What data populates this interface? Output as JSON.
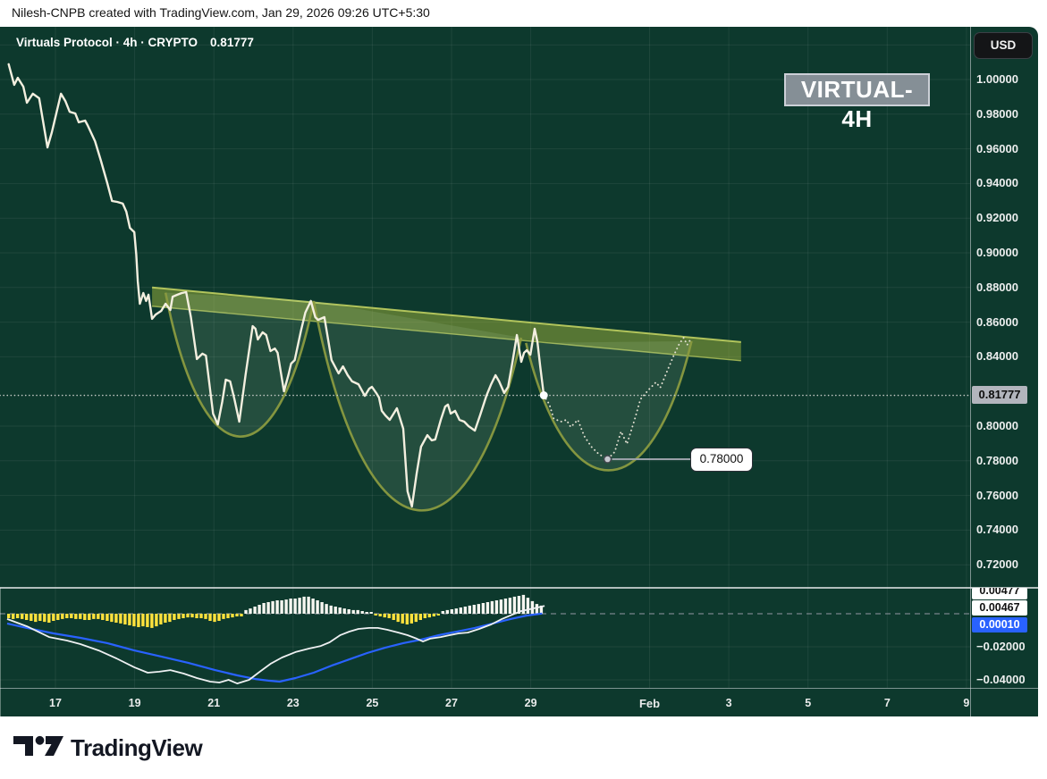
{
  "attribution": {
    "text": "Nilesh-CNPB created with TradingView.com, Jan 29, 2026 09:26 UTC+5:30"
  },
  "header": {
    "symbol_title": "Virtuals Protocol · 4h · CRYPTO",
    "last_price": "0.81777",
    "currency_button": "USD",
    "watermark": "VIRTUAL-4H"
  },
  "footer": {
    "brand": "TradingView"
  },
  "callout": {
    "text": "0.78000"
  },
  "price_axis": {
    "current": {
      "label": "0.81777",
      "value": 0.81777
    },
    "extra_grid": [
      1.02
    ],
    "ticks": [
      {
        "label": "1.00000",
        "value": 1.0
      },
      {
        "label": "0.98000",
        "value": 0.98
      },
      {
        "label": "0.96000",
        "value": 0.96
      },
      {
        "label": "0.94000",
        "value": 0.94
      },
      {
        "label": "0.92000",
        "value": 0.92
      },
      {
        "label": "0.90000",
        "value": 0.9
      },
      {
        "label": "0.88000",
        "value": 0.88
      },
      {
        "label": "0.86000",
        "value": 0.86
      },
      {
        "label": "0.84000",
        "value": 0.84
      },
      {
        "label": "0.80000",
        "value": 0.8
      },
      {
        "label": "0.78000",
        "value": 0.78
      },
      {
        "label": "0.76000",
        "value": 0.76
      },
      {
        "label": "0.74000",
        "value": 0.74
      },
      {
        "label": "0.72000",
        "value": 0.72
      }
    ]
  },
  "time_axis": {
    "ticks": [
      {
        "label": "17",
        "day": 17
      },
      {
        "label": "19",
        "day": 19
      },
      {
        "label": "21",
        "day": 21
      },
      {
        "label": "23",
        "day": 23
      },
      {
        "label": "25",
        "day": 25
      },
      {
        "label": "27",
        "day": 27
      },
      {
        "label": "29",
        "day": 29
      },
      {
        "label": "Feb",
        "day": 32,
        "bold": true
      },
      {
        "label": "3",
        "day": 34
      },
      {
        "label": "5",
        "day": 36
      },
      {
        "label": "7",
        "day": 38
      },
      {
        "label": "9",
        "day": 40
      }
    ]
  },
  "indicator_axis": {
    "badges": [
      {
        "label": "0.00477"
      },
      {
        "label": "0.00467"
      },
      {
        "label": "0.00010"
      }
    ],
    "ticks": [
      {
        "label": "−0.02000",
        "value": -0.02
      },
      {
        "label": "−0.04000",
        "value": -0.04
      }
    ]
  },
  "colors": {
    "panel_bg": "#0d392d",
    "grid": "rgba(255,255,255,0.07)",
    "price_line": "#f3efdf",
    "cup_stroke": "#8a9a40",
    "cup_fill": "rgba(195,225,175,0.13)",
    "band_fill": "rgba(160,180,60,0.50)",
    "band_edge": "rgba(200,215,100,0.85)",
    "dotted_level": "#c7cbc7",
    "projection": "#e3e0d2",
    "hist_pos": "#f6f6f0",
    "hist_neg": "#ffe23d",
    "macd_line": "#eef0f2",
    "signal_line": "#2962ff",
    "signal_label_bg": "#2962ff",
    "current_label_bg": "#b2b5bd",
    "separator": "#e8eaec",
    "target_dot": "#c6c9cf"
  },
  "chart_data": {
    "type": "line",
    "title": "Virtuals Protocol · 4h · CRYPTO",
    "watermark": "VIRTUAL-4H",
    "currency": "USD",
    "last_price": 0.81777,
    "x_unit": "day of Jan 2026 (Feb 1 = 32)",
    "x_range": [
      15.6,
      41.8
    ],
    "price_ylim": [
      0.705,
      1.025
    ],
    "grid": true,
    "price_series": [
      [
        15.82,
        1.0088
      ],
      [
        15.96,
        0.9969
      ],
      [
        16.05,
        1.001
      ],
      [
        16.19,
        0.9959
      ],
      [
        16.28,
        0.9866
      ],
      [
        16.43,
        0.9918
      ],
      [
        16.59,
        0.9892
      ],
      [
        16.8,
        0.9608
      ],
      [
        16.91,
        0.9696
      ],
      [
        17.14,
        0.9918
      ],
      [
        17.25,
        0.9876
      ],
      [
        17.36,
        0.9814
      ],
      [
        17.5,
        0.9804
      ],
      [
        17.59,
        0.9753
      ],
      [
        17.75,
        0.9763
      ],
      [
        17.81,
        0.9737
      ],
      [
        18.0,
        0.9644
      ],
      [
        18.15,
        0.9531
      ],
      [
        18.31,
        0.9402
      ],
      [
        18.43,
        0.9299
      ],
      [
        18.56,
        0.9294
      ],
      [
        18.7,
        0.9284
      ],
      [
        18.79,
        0.9237
      ],
      [
        18.88,
        0.9144
      ],
      [
        18.99,
        0.9119
      ],
      [
        19.04,
        0.899
      ],
      [
        19.08,
        0.8835
      ],
      [
        19.13,
        0.8706
      ],
      [
        19.22,
        0.8768
      ],
      [
        19.29,
        0.8722
      ],
      [
        19.35,
        0.8758
      ],
      [
        19.44,
        0.8619
      ],
      [
        19.53,
        0.8644
      ],
      [
        19.67,
        0.8665
      ],
      [
        19.78,
        0.8706
      ],
      [
        19.9,
        0.867
      ],
      [
        19.96,
        0.8747
      ],
      [
        20.08,
        0.8758
      ],
      [
        20.19,
        0.8768
      ],
      [
        20.3,
        0.8773
      ],
      [
        20.42,
        0.8629
      ],
      [
        20.57,
        0.8387
      ],
      [
        20.71,
        0.8418
      ],
      [
        20.8,
        0.8407
      ],
      [
        20.98,
        0.8072
      ],
      [
        21.1,
        0.801
      ],
      [
        21.21,
        0.8139
      ],
      [
        21.3,
        0.8268
      ],
      [
        21.41,
        0.8258
      ],
      [
        21.52,
        0.8155
      ],
      [
        21.64,
        0.8026
      ],
      [
        21.8,
        0.8294
      ],
      [
        21.98,
        0.8577
      ],
      [
        22.05,
        0.8562
      ],
      [
        22.11,
        0.85
      ],
      [
        22.23,
        0.8541
      ],
      [
        22.32,
        0.8526
      ],
      [
        22.43,
        0.8433
      ],
      [
        22.54,
        0.8448
      ],
      [
        22.61,
        0.8423
      ],
      [
        22.77,
        0.8201
      ],
      [
        22.88,
        0.8294
      ],
      [
        22.95,
        0.8361
      ],
      [
        23.04,
        0.8381
      ],
      [
        23.2,
        0.8552
      ],
      [
        23.31,
        0.8655
      ],
      [
        23.45,
        0.8722
      ],
      [
        23.56,
        0.8629
      ],
      [
        23.63,
        0.8613
      ],
      [
        23.79,
        0.8629
      ],
      [
        23.97,
        0.8381
      ],
      [
        24.15,
        0.8304
      ],
      [
        24.26,
        0.8345
      ],
      [
        24.38,
        0.8294
      ],
      [
        24.49,
        0.8258
      ],
      [
        24.65,
        0.8242
      ],
      [
        24.81,
        0.8175
      ],
      [
        24.92,
        0.8216
      ],
      [
        24.99,
        0.8227
      ],
      [
        25.1,
        0.8191
      ],
      [
        25.17,
        0.8165
      ],
      [
        25.24,
        0.8088
      ],
      [
        25.33,
        0.8062
      ],
      [
        25.44,
        0.8036
      ],
      [
        25.55,
        0.8077
      ],
      [
        25.62,
        0.8103
      ],
      [
        25.78,
        0.7985
      ],
      [
        25.89,
        0.7624
      ],
      [
        26.0,
        0.7536
      ],
      [
        26.12,
        0.7727
      ],
      [
        26.23,
        0.7881
      ],
      [
        26.39,
        0.7948
      ],
      [
        26.5,
        0.7918
      ],
      [
        26.59,
        0.7923
      ],
      [
        26.73,
        0.8036
      ],
      [
        26.84,
        0.8113
      ],
      [
        26.91,
        0.8124
      ],
      [
        26.98,
        0.8072
      ],
      [
        27.09,
        0.8088
      ],
      [
        27.2,
        0.8036
      ],
      [
        27.32,
        0.8026
      ],
      [
        27.43,
        0.8
      ],
      [
        27.59,
        0.7974
      ],
      [
        27.72,
        0.8062
      ],
      [
        27.88,
        0.8175
      ],
      [
        28.0,
        0.8242
      ],
      [
        28.11,
        0.8294
      ],
      [
        28.2,
        0.8258
      ],
      [
        28.33,
        0.8191
      ],
      [
        28.43,
        0.8227
      ],
      [
        28.54,
        0.8371
      ],
      [
        28.65,
        0.8526
      ],
      [
        28.76,
        0.8371
      ],
      [
        28.83,
        0.8423
      ],
      [
        28.9,
        0.8438
      ],
      [
        28.99,
        0.8412
      ],
      [
        29.1,
        0.8562
      ],
      [
        29.17,
        0.8485
      ],
      [
        29.24,
        0.8345
      ],
      [
        29.33,
        0.81777
      ]
    ],
    "projection_dotted": [
      [
        29.33,
        0.8178
      ],
      [
        29.47,
        0.8126
      ],
      [
        29.58,
        0.8044
      ],
      [
        29.76,
        0.8026
      ],
      [
        29.9,
        0.8036
      ],
      [
        30.01,
        0.7995
      ],
      [
        30.19,
        0.8036
      ],
      [
        30.35,
        0.7943
      ],
      [
        30.53,
        0.7881
      ],
      [
        30.71,
        0.784
      ],
      [
        30.94,
        0.7809
      ],
      [
        31.12,
        0.7851
      ],
      [
        31.28,
        0.7969
      ],
      [
        31.43,
        0.7897
      ],
      [
        31.62,
        0.8036
      ],
      [
        31.77,
        0.8155
      ],
      [
        31.98,
        0.8211
      ],
      [
        32.16,
        0.8253
      ],
      [
        32.27,
        0.8222
      ],
      [
        32.45,
        0.832
      ],
      [
        32.61,
        0.8407
      ],
      [
        32.75,
        0.8474
      ],
      [
        32.86,
        0.851
      ],
      [
        32.95,
        0.8469
      ],
      [
        33.02,
        0.8495
      ]
    ],
    "cups": [
      {
        "start": [
          19.78,
          0.877
        ],
        "bottom_price": 0.794,
        "end": [
          23.52,
          0.8722
        ]
      },
      {
        "start": [
          23.52,
          0.8722
        ],
        "bottom_price": 0.7515,
        "end": [
          28.76,
          0.851
        ]
      },
      {
        "start": [
          28.88,
          0.848
        ],
        "bottom_price": 0.7745,
        "end": [
          33.06,
          0.849
        ]
      }
    ],
    "resistance_band": {
      "from": [
        19.44,
        0.88
      ],
      "to": [
        34.31,
        0.8485
      ],
      "width_price": 0.0108
    },
    "current_price_level": 0.81777,
    "markers": {
      "last_point": [
        29.33,
        0.81777
      ],
      "target_point": [
        30.94,
        0.7809
      ],
      "target_label": "0.78000",
      "target_connector_end_day": 33.06
    },
    "macd": {
      "ylim": [
        -0.052,
        0.012
      ],
      "histogram": {
        "start_day": 15.82,
        "step_day": 0.113,
        "values": [
          -0.0027,
          -0.0032,
          -0.0027,
          -0.0032,
          -0.0038,
          -0.0043,
          -0.0049,
          -0.0043,
          -0.0049,
          -0.0054,
          -0.0043,
          -0.0038,
          -0.0032,
          -0.0027,
          -0.0027,
          -0.0032,
          -0.0032,
          -0.0038,
          -0.0038,
          -0.0032,
          -0.0032,
          -0.0038,
          -0.0043,
          -0.0049,
          -0.0054,
          -0.0059,
          -0.0065,
          -0.007,
          -0.0076,
          -0.0081,
          -0.0076,
          -0.0081,
          -0.0086,
          -0.0076,
          -0.0065,
          -0.0054,
          -0.0049,
          -0.0038,
          -0.0032,
          -0.0027,
          -0.0022,
          -0.0022,
          -0.0027,
          -0.0027,
          -0.0032,
          -0.0043,
          -0.0049,
          -0.0043,
          -0.0032,
          -0.0027,
          -0.0022,
          -0.0016,
          -0.0016,
          0.0022,
          0.0032,
          0.0043,
          0.0054,
          0.0065,
          0.007,
          0.0076,
          0.0081,
          0.0081,
          0.0086,
          0.0092,
          0.0092,
          0.0097,
          0.0103,
          0.0103,
          0.0092,
          0.0081,
          0.007,
          0.0059,
          0.0049,
          0.0043,
          0.0038,
          0.0032,
          0.0027,
          0.0022,
          0.0022,
          0.0016,
          0.0011,
          0.0011,
          -0.0011,
          -0.0016,
          -0.0022,
          -0.0027,
          -0.0038,
          -0.0049,
          -0.0059,
          -0.0065,
          -0.0059,
          -0.0049,
          -0.0038,
          -0.0027,
          -0.0022,
          -0.0016,
          -0.0011,
          0.0016,
          0.0022,
          0.0027,
          0.0032,
          0.0038,
          0.0043,
          0.0049,
          0.0054,
          0.0059,
          0.0065,
          0.007,
          0.0076,
          0.0081,
          0.0086,
          0.0092,
          0.0097,
          0.0103,
          0.0108,
          0.0114,
          0.0097,
          0.0076,
          0.0059,
          0.0049
        ]
      },
      "macd_line": [
        [
          15.78,
          -0.0032
        ],
        [
          16.28,
          -0.0076
        ],
        [
          16.84,
          -0.0141
        ],
        [
          17.29,
          -0.0162
        ],
        [
          17.63,
          -0.0184
        ],
        [
          18.09,
          -0.0222
        ],
        [
          18.54,
          -0.027
        ],
        [
          18.99,
          -0.0324
        ],
        [
          19.33,
          -0.0357
        ],
        [
          19.62,
          -0.0351
        ],
        [
          19.9,
          -0.0341
        ],
        [
          20.24,
          -0.0362
        ],
        [
          20.57,
          -0.0389
        ],
        [
          20.91,
          -0.0411
        ],
        [
          21.14,
          -0.0416
        ],
        [
          21.37,
          -0.04
        ],
        [
          21.59,
          -0.0422
        ],
        [
          21.89,
          -0.04
        ],
        [
          22.16,
          -0.0351
        ],
        [
          22.43,
          -0.0303
        ],
        [
          22.72,
          -0.0265
        ],
        [
          23.06,
          -0.0232
        ],
        [
          23.4,
          -0.0211
        ],
        [
          23.7,
          -0.0195
        ],
        [
          23.92,
          -0.0173
        ],
        [
          24.19,
          -0.013
        ],
        [
          24.42,
          -0.0108
        ],
        [
          24.65,
          -0.0092
        ],
        [
          24.92,
          -0.0086
        ],
        [
          25.14,
          -0.0086
        ],
        [
          25.37,
          -0.0097
        ],
        [
          25.66,
          -0.0114
        ],
        [
          25.89,
          -0.013
        ],
        [
          26.12,
          -0.0151
        ],
        [
          26.28,
          -0.0168
        ],
        [
          26.46,
          -0.0151
        ],
        [
          26.73,
          -0.0141
        ],
        [
          26.95,
          -0.013
        ],
        [
          27.18,
          -0.0119
        ],
        [
          27.41,
          -0.0114
        ],
        [
          27.7,
          -0.0092
        ],
        [
          28.0,
          -0.0065
        ],
        [
          28.27,
          -0.0032
        ],
        [
          28.54,
          -0.0005
        ],
        [
          28.76,
          0.0016
        ],
        [
          29.06,
          0.0032
        ],
        [
          29.35,
          0.0047
        ]
      ],
      "signal_line": [
        [
          15.78,
          -0.0059
        ],
        [
          16.28,
          -0.0086
        ],
        [
          16.95,
          -0.0119
        ],
        [
          17.63,
          -0.0146
        ],
        [
          18.31,
          -0.0178
        ],
        [
          18.99,
          -0.0222
        ],
        [
          19.67,
          -0.0259
        ],
        [
          20.35,
          -0.0297
        ],
        [
          21.03,
          -0.0341
        ],
        [
          21.59,
          -0.0373
        ],
        [
          22.05,
          -0.0395
        ],
        [
          22.38,
          -0.0405
        ],
        [
          22.66,
          -0.0411
        ],
        [
          23.06,
          -0.0389
        ],
        [
          23.52,
          -0.0357
        ],
        [
          23.97,
          -0.0314
        ],
        [
          24.42,
          -0.0276
        ],
        [
          24.87,
          -0.0238
        ],
        [
          25.33,
          -0.0205
        ],
        [
          25.78,
          -0.0178
        ],
        [
          26.23,
          -0.0157
        ],
        [
          26.68,
          -0.013
        ],
        [
          27.14,
          -0.0108
        ],
        [
          27.59,
          -0.0086
        ],
        [
          28.04,
          -0.0059
        ],
        [
          28.49,
          -0.0032
        ],
        [
          28.9,
          -0.0011
        ],
        [
          29.29,
          0.0001
        ]
      ],
      "value_labels": [
        "0.00477",
        "0.00467",
        "0.00010"
      ]
    }
  }
}
